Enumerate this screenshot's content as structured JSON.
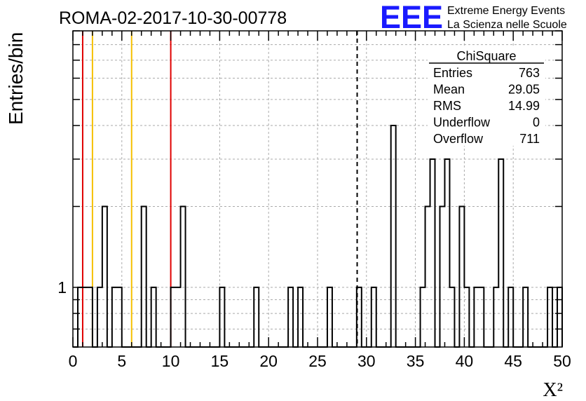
{
  "title": "ROMA-02-2017-10-30-00778",
  "logo": {
    "mark": "EEE",
    "line1": "Extreme Energy Events",
    "line2": "La Scienza nelle Scuole",
    "color": "#1a1aff"
  },
  "stats": {
    "title": "ChiSquare",
    "rows": [
      {
        "label": "Entries",
        "value": "763"
      },
      {
        "label": "Mean",
        "value": "29.05"
      },
      {
        "label": "RMS",
        "value": "14.99"
      },
      {
        "label": "Underflow",
        "value": "0"
      },
      {
        "label": "Overflow",
        "value": "711"
      }
    ]
  },
  "chart_data": {
    "type": "bar",
    "histogram": true,
    "xlabel": "X²",
    "ylabel": "Entries/bin",
    "xlim": [
      0,
      50
    ],
    "ylim": [
      0.6,
      9.0
    ],
    "log_y": true,
    "bin_width": 0.5,
    "grid": true,
    "legend": "none",
    "x_tick_labels": [
      "0",
      "5",
      "10",
      "15",
      "20",
      "25",
      "30",
      "35",
      "40",
      "45",
      "50"
    ],
    "y_tick_labels": [
      "1"
    ],
    "bins": [
      [
        0.5,
        1
      ],
      [
        1.0,
        1
      ],
      [
        1.5,
        1
      ],
      [
        2.5,
        1
      ],
      [
        3.0,
        2
      ],
      [
        4.0,
        1
      ],
      [
        4.5,
        1
      ],
      [
        7.0,
        2
      ],
      [
        8.0,
        1
      ],
      [
        10.0,
        1
      ],
      [
        10.5,
        1
      ],
      [
        11.0,
        2
      ],
      [
        15.0,
        1
      ],
      [
        18.5,
        1
      ],
      [
        22.0,
        1
      ],
      [
        23.0,
        1
      ],
      [
        26.0,
        1
      ],
      [
        29.0,
        1
      ],
      [
        30.5,
        1
      ],
      [
        32.5,
        4
      ],
      [
        35.5,
        1
      ],
      [
        36.0,
        2
      ],
      [
        36.5,
        3
      ],
      [
        37.5,
        2
      ],
      [
        38.0,
        3
      ],
      [
        38.5,
        1
      ],
      [
        39.5,
        2
      ],
      [
        40.0,
        1
      ],
      [
        41.0,
        1
      ],
      [
        41.5,
        1
      ],
      [
        43.0,
        1
      ],
      [
        43.5,
        3
      ],
      [
        44.5,
        1
      ],
      [
        46.0,
        1
      ],
      [
        48.5,
        1
      ],
      [
        49.5,
        1
      ]
    ],
    "vlines": [
      {
        "x": 1.0,
        "color": "#e00000",
        "style": "solid"
      },
      {
        "x": 2.0,
        "color": "#f5c000",
        "style": "solid"
      },
      {
        "x": 6.0,
        "color": "#f5c000",
        "style": "solid"
      },
      {
        "x": 10.0,
        "color": "#e00000",
        "style": "solid"
      },
      {
        "x": 29.05,
        "color": "#000000",
        "style": "dashed"
      }
    ]
  }
}
